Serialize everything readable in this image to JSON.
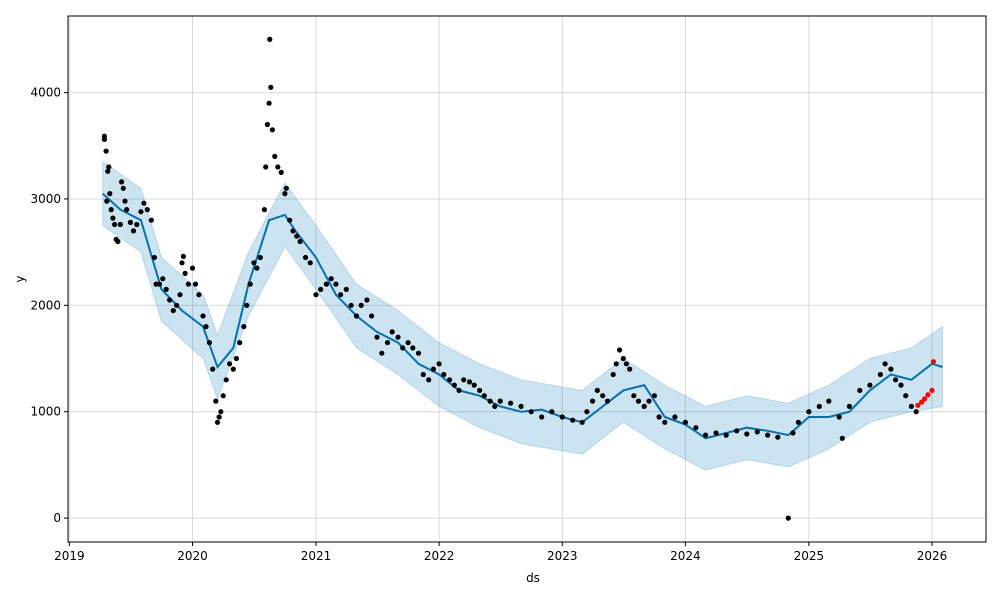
{
  "chart_data": {
    "type": "scatter",
    "xlabel": "ds",
    "ylabel": "y",
    "x_range": [
      "2018-12-28",
      "2026-06-10"
    ],
    "y_range": [
      -225,
      4720
    ],
    "x_ticks": [
      "2019",
      "2020",
      "2021",
      "2022",
      "2023",
      "2024",
      "2025",
      "2026"
    ],
    "y_ticks": [
      0,
      1000,
      2000,
      3000,
      4000
    ],
    "grid": true,
    "colors": {
      "observed": "#000000",
      "forecast_line": "#0072b2",
      "uncertainty": "#0072b2",
      "recent_points": "#ff0000"
    },
    "series": [
      {
        "kind": "observed-points",
        "points": [
          [
            "2019-04-15",
            3560
          ],
          [
            "2019-04-15",
            3590
          ],
          [
            "2019-04-20",
            3450
          ],
          [
            "2019-04-22",
            2980
          ],
          [
            "2019-04-25",
            3260
          ],
          [
            "2019-04-28",
            3300
          ],
          [
            "2019-05-01",
            3050
          ],
          [
            "2019-05-05",
            2900
          ],
          [
            "2019-05-10",
            2820
          ],
          [
            "2019-05-15",
            2760
          ],
          [
            "2019-05-20",
            2620
          ],
          [
            "2019-05-25",
            2600
          ],
          [
            "2019-06-01",
            2760
          ],
          [
            "2019-06-05",
            3160
          ],
          [
            "2019-06-10",
            3100
          ],
          [
            "2019-06-15",
            2980
          ],
          [
            "2019-06-20",
            2900
          ],
          [
            "2019-07-01",
            2780
          ],
          [
            "2019-07-10",
            2700
          ],
          [
            "2019-07-20",
            2760
          ],
          [
            "2019-08-01",
            2880
          ],
          [
            "2019-08-10",
            2960
          ],
          [
            "2019-08-20",
            2900
          ],
          [
            "2019-09-01",
            2800
          ],
          [
            "2019-09-10",
            2450
          ],
          [
            "2019-09-15",
            2200
          ],
          [
            "2019-09-25",
            2200
          ],
          [
            "2019-10-05",
            2250
          ],
          [
            "2019-10-15",
            2150
          ],
          [
            "2019-10-25",
            2050
          ],
          [
            "2019-11-05",
            1950
          ],
          [
            "2019-11-15",
            2000
          ],
          [
            "2019-11-25",
            2100
          ],
          [
            "2019-12-01",
            2400
          ],
          [
            "2019-12-05",
            2460
          ],
          [
            "2019-12-10",
            2300
          ],
          [
            "2019-12-20",
            2200
          ],
          [
            "2020-01-01",
            2350
          ],
          [
            "2020-01-10",
            2200
          ],
          [
            "2020-01-20",
            2100
          ],
          [
            "2020-02-01",
            1900
          ],
          [
            "2020-02-10",
            1800
          ],
          [
            "2020-02-20",
            1650
          ],
          [
            "2020-03-01",
            1400
          ],
          [
            "2020-03-10",
            1100
          ],
          [
            "2020-03-15",
            900
          ],
          [
            "2020-03-20",
            950
          ],
          [
            "2020-03-25",
            1000
          ],
          [
            "2020-04-01",
            1150
          ],
          [
            "2020-04-10",
            1300
          ],
          [
            "2020-04-20",
            1450
          ],
          [
            "2020-05-01",
            1400
          ],
          [
            "2020-05-10",
            1500
          ],
          [
            "2020-05-20",
            1650
          ],
          [
            "2020-06-01",
            1800
          ],
          [
            "2020-06-10",
            2000
          ],
          [
            "2020-06-20",
            2200
          ],
          [
            "2020-07-01",
            2400
          ],
          [
            "2020-07-10",
            2350
          ],
          [
            "2020-07-20",
            2450
          ],
          [
            "2020-08-01",
            2900
          ],
          [
            "2020-08-05",
            3300
          ],
          [
            "2020-08-10",
            3700
          ],
          [
            "2020-08-15",
            3900
          ],
          [
            "2020-08-17",
            4500
          ],
          [
            "2020-08-20",
            4050
          ],
          [
            "2020-08-25",
            3650
          ],
          [
            "2020-09-01",
            3400
          ],
          [
            "2020-09-10",
            3300
          ],
          [
            "2020-09-20",
            3250
          ],
          [
            "2020-10-01",
            3050
          ],
          [
            "2020-10-05",
            3100
          ],
          [
            "2020-10-15",
            2800
          ],
          [
            "2020-10-25",
            2700
          ],
          [
            "2020-11-05",
            2650
          ],
          [
            "2020-11-15",
            2600
          ],
          [
            "2020-12-01",
            2450
          ],
          [
            "2020-12-15",
            2400
          ],
          [
            "2021-01-01",
            2100
          ],
          [
            "2021-01-15",
            2150
          ],
          [
            "2021-02-01",
            2200
          ],
          [
            "2021-02-15",
            2250
          ],
          [
            "2021-03-01",
            2200
          ],
          [
            "2021-03-15",
            2100
          ],
          [
            "2021-04-01",
            2150
          ],
          [
            "2021-04-15",
            2000
          ],
          [
            "2021-05-01",
            1900
          ],
          [
            "2021-05-15",
            2000
          ],
          [
            "2021-06-01",
            2050
          ],
          [
            "2021-06-15",
            1900
          ],
          [
            "2021-07-01",
            1700
          ],
          [
            "2021-07-15",
            1550
          ],
          [
            "2021-08-01",
            1650
          ],
          [
            "2021-08-15",
            1750
          ],
          [
            "2021-09-01",
            1700
          ],
          [
            "2021-09-15",
            1600
          ],
          [
            "2021-10-01",
            1650
          ],
          [
            "2021-10-15",
            1600
          ],
          [
            "2021-11-01",
            1550
          ],
          [
            "2021-11-15",
            1350
          ],
          [
            "2021-12-01",
            1300
          ],
          [
            "2021-12-15",
            1400
          ],
          [
            "2022-01-01",
            1450
          ],
          [
            "2022-01-15",
            1350
          ],
          [
            "2022-02-01",
            1300
          ],
          [
            "2022-02-15",
            1250
          ],
          [
            "2022-03-01",
            1200
          ],
          [
            "2022-03-15",
            1300
          ],
          [
            "2022-04-01",
            1280
          ],
          [
            "2022-04-15",
            1250
          ],
          [
            "2022-05-01",
            1200
          ],
          [
            "2022-05-15",
            1150
          ],
          [
            "2022-06-01",
            1100
          ],
          [
            "2022-06-15",
            1050
          ],
          [
            "2022-07-01",
            1100
          ],
          [
            "2022-08-01",
            1080
          ],
          [
            "2022-09-01",
            1050
          ],
          [
            "2022-10-01",
            1000
          ],
          [
            "2022-11-01",
            950
          ],
          [
            "2022-12-01",
            1000
          ],
          [
            "2023-01-01",
            950
          ],
          [
            "2023-02-01",
            920
          ],
          [
            "2023-03-01",
            900
          ],
          [
            "2023-03-15",
            1000
          ],
          [
            "2023-04-01",
            1100
          ],
          [
            "2023-04-15",
            1200
          ],
          [
            "2023-05-01",
            1150
          ],
          [
            "2023-05-15",
            1100
          ],
          [
            "2023-06-01",
            1350
          ],
          [
            "2023-06-10",
            1450
          ],
          [
            "2023-06-20",
            1580
          ],
          [
            "2023-07-01",
            1500
          ],
          [
            "2023-07-10",
            1450
          ],
          [
            "2023-07-20",
            1400
          ],
          [
            "2023-08-01",
            1150
          ],
          [
            "2023-08-15",
            1100
          ],
          [
            "2023-09-01",
            1050
          ],
          [
            "2023-09-15",
            1100
          ],
          [
            "2023-10-01",
            1150
          ],
          [
            "2023-10-15",
            950
          ],
          [
            "2023-11-01",
            900
          ],
          [
            "2023-12-01",
            950
          ],
          [
            "2024-01-01",
            900
          ],
          [
            "2024-02-01",
            850
          ],
          [
            "2024-03-01",
            780
          ],
          [
            "2024-04-01",
            800
          ],
          [
            "2024-05-01",
            780
          ],
          [
            "2024-06-01",
            820
          ],
          [
            "2024-07-01",
            790
          ],
          [
            "2024-08-01",
            810
          ],
          [
            "2024-09-01",
            780
          ],
          [
            "2024-10-01",
            760
          ],
          [
            "2024-11-01",
            0
          ],
          [
            "2024-11-15",
            800
          ],
          [
            "2024-12-01",
            900
          ],
          [
            "2025-01-01",
            1000
          ],
          [
            "2025-02-01",
            1050
          ],
          [
            "2025-03-01",
            1100
          ],
          [
            "2025-04-01",
            950
          ],
          [
            "2025-04-10",
            750
          ],
          [
            "2025-05-01",
            1050
          ],
          [
            "2025-06-01",
            1200
          ],
          [
            "2025-07-01",
            1250
          ],
          [
            "2025-08-01",
            1350
          ],
          [
            "2025-08-15",
            1450
          ],
          [
            "2025-09-01",
            1400
          ],
          [
            "2025-09-15",
            1300
          ],
          [
            "2025-10-01",
            1250
          ],
          [
            "2025-10-15",
            1150
          ],
          [
            "2025-11-01",
            1050
          ],
          [
            "2025-11-15",
            1000
          ]
        ]
      },
      {
        "kind": "recent-points",
        "points": [
          [
            "2025-11-20",
            1060
          ],
          [
            "2025-12-01",
            1090
          ],
          [
            "2025-12-10",
            1120
          ],
          [
            "2025-12-20",
            1160
          ],
          [
            "2026-01-01",
            1200
          ],
          [
            "2026-01-05",
            1470
          ]
        ]
      },
      {
        "kind": "forecast-trend",
        "points": [
          [
            "2019-04-10",
            3050
          ],
          [
            "2019-06-01",
            2900
          ],
          [
            "2019-08-01",
            2800
          ],
          [
            "2019-10-01",
            2150
          ],
          [
            "2019-12-01",
            1950
          ],
          [
            "2020-02-01",
            1800
          ],
          [
            "2020-03-15",
            1420
          ],
          [
            "2020-05-01",
            1600
          ],
          [
            "2020-06-15",
            2200
          ],
          [
            "2020-08-15",
            2800
          ],
          [
            "2020-10-01",
            2850
          ],
          [
            "2020-11-01",
            2700
          ],
          [
            "2021-01-01",
            2450
          ],
          [
            "2021-03-01",
            2100
          ],
          [
            "2021-05-01",
            1900
          ],
          [
            "2021-07-01",
            1750
          ],
          [
            "2021-09-01",
            1650
          ],
          [
            "2021-11-01",
            1450
          ],
          [
            "2022-01-01",
            1350
          ],
          [
            "2022-03-01",
            1200
          ],
          [
            "2022-05-01",
            1150
          ],
          [
            "2022-07-01",
            1050
          ],
          [
            "2022-09-01",
            1000
          ],
          [
            "2022-11-01",
            1020
          ],
          [
            "2023-01-01",
            950
          ],
          [
            "2023-03-01",
            900
          ],
          [
            "2023-05-01",
            1050
          ],
          [
            "2023-07-01",
            1200
          ],
          [
            "2023-09-01",
            1250
          ],
          [
            "2023-11-01",
            950
          ],
          [
            "2024-01-01",
            880
          ],
          [
            "2024-03-01",
            750
          ],
          [
            "2024-05-01",
            800
          ],
          [
            "2024-07-01",
            850
          ],
          [
            "2024-09-01",
            820
          ],
          [
            "2024-11-01",
            780
          ],
          [
            "2025-01-01",
            950
          ],
          [
            "2025-03-01",
            950
          ],
          [
            "2025-05-01",
            1000
          ],
          [
            "2025-07-01",
            1200
          ],
          [
            "2025-09-01",
            1350
          ],
          [
            "2025-11-01",
            1300
          ],
          [
            "2026-01-01",
            1450
          ],
          [
            "2026-02-01",
            1420
          ]
        ]
      },
      {
        "kind": "uncertainty-band",
        "lower": [
          [
            "2019-04-10",
            2750
          ],
          [
            "2019-08-01",
            2500
          ],
          [
            "2019-10-01",
            1850
          ],
          [
            "2020-02-01",
            1500
          ],
          [
            "2020-03-15",
            1120
          ],
          [
            "2020-06-15",
            1900
          ],
          [
            "2020-10-01",
            2550
          ],
          [
            "2021-01-01",
            2150
          ],
          [
            "2021-05-01",
            1600
          ],
          [
            "2021-09-01",
            1350
          ],
          [
            "2022-01-01",
            1050
          ],
          [
            "2022-05-01",
            850
          ],
          [
            "2022-09-01",
            700
          ],
          [
            "2023-03-01",
            600
          ],
          [
            "2023-07-01",
            900
          ],
          [
            "2023-11-01",
            650
          ],
          [
            "2024-03-01",
            450
          ],
          [
            "2024-07-01",
            550
          ],
          [
            "2024-11-01",
            480
          ],
          [
            "2025-03-01",
            650
          ],
          [
            "2025-07-01",
            900
          ],
          [
            "2025-11-01",
            1000
          ],
          [
            "2026-02-01",
            1050
          ]
        ],
        "upper": [
          [
            "2019-04-10",
            3350
          ],
          [
            "2019-08-01",
            3100
          ],
          [
            "2019-10-01",
            2450
          ],
          [
            "2020-02-01",
            2100
          ],
          [
            "2020-03-15",
            1720
          ],
          [
            "2020-06-15",
            2500
          ],
          [
            "2020-10-01",
            3150
          ],
          [
            "2021-01-01",
            2750
          ],
          [
            "2021-05-01",
            2200
          ],
          [
            "2021-09-01",
            1950
          ],
          [
            "2022-01-01",
            1650
          ],
          [
            "2022-05-01",
            1450
          ],
          [
            "2022-09-01",
            1300
          ],
          [
            "2023-03-01",
            1200
          ],
          [
            "2023-07-01",
            1500
          ],
          [
            "2023-11-01",
            1250
          ],
          [
            "2024-03-01",
            1050
          ],
          [
            "2024-07-01",
            1150
          ],
          [
            "2024-11-01",
            1080
          ],
          [
            "2025-03-01",
            1250
          ],
          [
            "2025-07-01",
            1500
          ],
          [
            "2025-11-01",
            1600
          ],
          [
            "2026-02-01",
            1800
          ]
        ]
      }
    ]
  }
}
